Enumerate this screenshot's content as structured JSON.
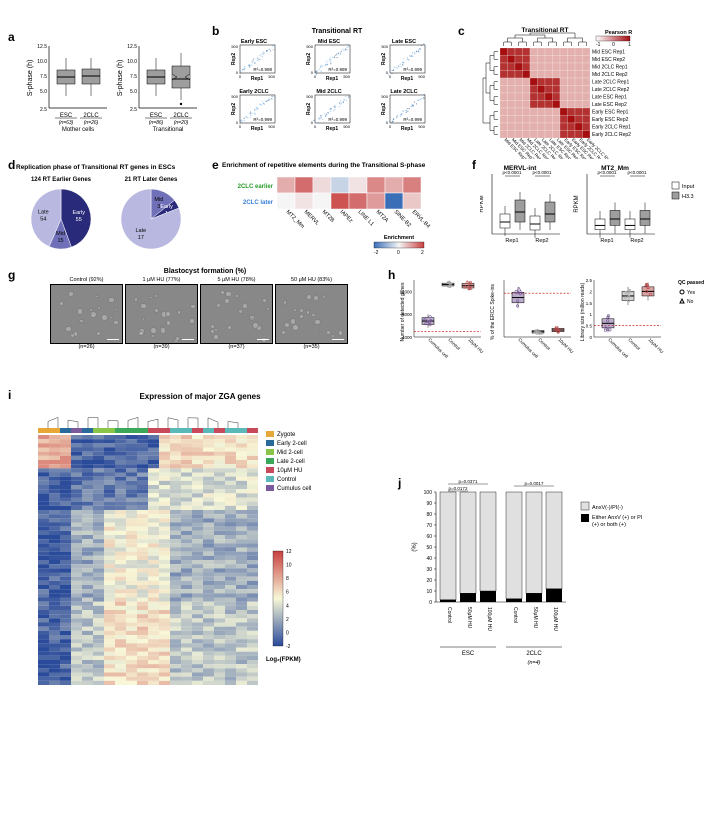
{
  "panels": {
    "a": {
      "label": "a",
      "left_title": "Mother cells",
      "right_title": "Transitional",
      "ylabel": "S-phase (h)",
      "ylim": [
        0,
        12.5
      ],
      "yticks": [
        0,
        2.5,
        5.0,
        7.5,
        10.0,
        12.5
      ],
      "categories_left": [
        "ESC",
        "2CLC"
      ],
      "n_left": [
        "(n=63)",
        "(n=26)"
      ],
      "categories_right": [
        "ESC",
        "2CLC"
      ],
      "n_right": [
        "(n=86)",
        "(n=20)"
      ],
      "box_left": {
        "ESC": {
          "q1": 5.0,
          "median": 6.0,
          "q3": 7.0
        },
        "2CLC": {
          "q1": 5.2,
          "median": 6.2,
          "q3": 7.2
        }
      },
      "box_right": {
        "ESC": {
          "q1": 5.0,
          "median": 6.0,
          "q3": 7.0
        },
        "2CLC": {
          "q1": 4.0,
          "median": 5.5,
          "q3": 7.5
        }
      },
      "box_color": "#9e9e9e"
    },
    "b": {
      "label": "b",
      "title": "Transitional RT",
      "subplots": [
        {
          "title": "Early ESC",
          "r2": "R²=0.998"
        },
        {
          "title": "Mid ESC",
          "r2": "R²=0.999"
        },
        {
          "title": "Late ESC",
          "r2": "R²=0.999"
        },
        {
          "title": "Early 2CLC",
          "r2": "R²=0.999"
        },
        {
          "title": "Mid 2CLC",
          "r2": "R²=0.999"
        },
        {
          "title": "Late 2CLC",
          "r2": "R²=0.999"
        }
      ],
      "xlabel": "Rep1",
      "ylabel": "Rep2",
      "xlim": [
        0,
        500
      ],
      "colormap": [
        "#ffffff",
        "#4a8fd8",
        "#08306b"
      ]
    },
    "c": {
      "label": "c",
      "title": "Transitional RT",
      "legend_title": "Pearson R",
      "legend_range": [
        -1,
        0,
        1
      ],
      "labels": [
        "Mid ESC Rep1",
        "Mid ESC Rep2",
        "Mid 2CLC Rep1",
        "Mid 2CLC Rep2",
        "Late 2CLC Rep1",
        "Late 2CLC Rep2",
        "Late ESC Rep1",
        "Late ESC Rep2",
        "Early ESC Rep1",
        "Early ESC Rep2",
        "Early 2CLC Rep1",
        "Early 2CLC Rep2"
      ],
      "colors": {
        "low": "#fff5f0",
        "high": "#a50f15"
      }
    },
    "d": {
      "label": "d",
      "title": "Replication phase of Transitional RT genes in ESCs",
      "left_title": "124 RT Earlier Genes",
      "right_title": "21 RT Later Genes",
      "left_slices": [
        {
          "label": "Early",
          "value": 55,
          "color": "#2a2a7a"
        },
        {
          "label": "Mid",
          "value": 15,
          "color": "#7070b8"
        },
        {
          "label": "Late",
          "value": 54,
          "color": "#b8b8e0"
        }
      ],
      "right_slices": [
        {
          "label": "Mid",
          "value": 3,
          "color": "#7070b8"
        },
        {
          "label": "Early",
          "value": 1,
          "color": "#2a2a7a"
        },
        {
          "label": "Late",
          "value": 17,
          "color": "#b8b8e0"
        }
      ]
    },
    "e": {
      "label": "e",
      "title": "Enrichment of repetitive elements during the Transitional S-phase",
      "row_labels": [
        "2CLC earlier",
        "2CLC later"
      ],
      "row_colors": [
        "#2a9d2a",
        "#3a7fd8"
      ],
      "col_labels": [
        "MT2_Mm",
        "MERVL",
        "MT2B",
        "IAPEz",
        "LINE L1",
        "MT2A",
        "SINE-B2",
        "ERVL-B4"
      ],
      "data": [
        [
          0.8,
          1.5,
          0.3,
          -0.5,
          0.2,
          1.2,
          0.8,
          1.3
        ],
        [
          0.0,
          0.2,
          0.0,
          1.8,
          1.5,
          1.0,
          -2.0,
          0.5
        ]
      ],
      "legend_title": "Enrichment",
      "legend_range": [
        -2,
        0,
        2
      ],
      "cmap": {
        "low": "#3a6fb8",
        "mid": "#f5f5f5",
        "high": "#c84040"
      }
    },
    "f": {
      "label": "f",
      "left_title": "MERVL-int",
      "right_title": "MT2_Mm",
      "ylabel": "RPKM",
      "categories": [
        "Rep1",
        "Rep2"
      ],
      "legend": [
        "Input",
        "H3.3"
      ],
      "legend_colors": [
        "#ffffff",
        "#9e9e9e"
      ],
      "pvals": "p<0.0001",
      "ylim_left": [
        0,
        1.5
      ],
      "ylim_right": [
        0,
        1.4
      ],
      "box_left": {
        "Rep1": {
          "Input": {
            "q1": 0.15,
            "median": 0.3,
            "q3": 0.5
          },
          "H3.3": {
            "q1": 0.3,
            "median": 0.55,
            "q3": 0.85
          }
        },
        "Rep2": {
          "Input": {
            "q1": 0.1,
            "median": 0.25,
            "q3": 0.45
          },
          "H3.3": {
            "q1": 0.3,
            "median": 0.5,
            "q3": 0.8
          }
        }
      },
      "box_right": {
        "Rep1": {
          "Input": {
            "q1": 0.1,
            "median": 0.2,
            "q3": 0.35
          },
          "H3.3": {
            "q1": 0.2,
            "median": 0.35,
            "q3": 0.55
          }
        },
        "Rep2": {
          "Input": {
            "q1": 0.1,
            "median": 0.2,
            "q3": 0.35
          },
          "H3.3": {
            "q1": 0.2,
            "median": 0.35,
            "q3": 0.55
          }
        }
      }
    },
    "g": {
      "label": "g",
      "title": "Blastocyst formation (%)",
      "panels": [
        {
          "label": "Control (92%)",
          "n": "(n=26)"
        },
        {
          "label": "1 μM HU (77%)",
          "n": "(n=39)"
        },
        {
          "label": "5 μM HU (78%)",
          "n": "(n=37)"
        },
        {
          "label": "50 μM HU (83%)",
          "n": "(n=35)"
        }
      ]
    },
    "h": {
      "label": "h",
      "subplots": [
        {
          "ylabel": "Number of detected genes",
          "ylim": [
            4000,
            14000
          ],
          "yticks": [
            4000,
            8000,
            12000
          ],
          "threshold": 5000
        },
        {
          "ylabel": "% of the ERCC Spike-ins",
          "ylim": [
            0,
            65
          ],
          "threshold": 50
        },
        {
          "ylabel": "Library size (million reads)",
          "ylim": [
            0,
            2.5
          ],
          "yticks": [
            0,
            0.5,
            1,
            1.5,
            2,
            2.5
          ],
          "threshold": 0.5
        }
      ],
      "categories": [
        "Cumulus cell",
        "Control",
        "10μM HU"
      ],
      "colors": [
        "#7a5a9a",
        "#a8a8a8",
        "#b84a4a"
      ],
      "legend_title": "QC passed",
      "legend": [
        {
          "label": "Yes",
          "marker": "circle"
        },
        {
          "label": "No",
          "marker": "triangle"
        }
      ]
    },
    "i": {
      "label": "i",
      "title": "Expression of major ZGA genes",
      "legend_title": "Log₂(FPKM)",
      "legend_range": [
        -2,
        0,
        2,
        4,
        6,
        8,
        10,
        12
      ],
      "groups": [
        "Zygote",
        "Early 2-cell",
        "Mid 2-cell",
        "Late 2-cell",
        "10μM HU",
        "Control",
        "Cumulus cell"
      ],
      "group_colors": [
        "#e8a838",
        "#2a6a9a",
        "#8ac44a",
        "#3aa858",
        "#c84a5a",
        "#5ab8b8",
        "#7a5a9a"
      ],
      "cmap": {
        "low": "#2a4a9a",
        "mid": "#f8f8d8",
        "high": "#c84040"
      }
    },
    "j": {
      "label": "j",
      "ylabel": "(%)",
      "ylim": [
        0,
        100
      ],
      "yticks": [
        0,
        10,
        20,
        30,
        40,
        50,
        60,
        70,
        80,
        90,
        100
      ],
      "groups": [
        "ESC",
        "2CLC"
      ],
      "categories": [
        "Control",
        "50μM HU",
        "100μM HU",
        "Control",
        "50μM HU",
        "100μM HU"
      ],
      "pvals": [
        "p=0.0172",
        "p=0.0371",
        "p=0.0017"
      ],
      "data": [
        {
          "neg": 98,
          "pos": 2
        },
        {
          "neg": 92,
          "pos": 8
        },
        {
          "neg": 90,
          "pos": 10
        },
        {
          "neg": 97,
          "pos": 3
        },
        {
          "neg": 92,
          "pos": 8
        },
        {
          "neg": 88,
          "pos": 12
        }
      ],
      "legend": [
        "AnxV(-)/PI(-)",
        "Either AnxV (+) or PI (+) or both (+)"
      ],
      "legend_colors": [
        "#e0e0e0",
        "#000000"
      ],
      "n": "(n=4)"
    }
  }
}
